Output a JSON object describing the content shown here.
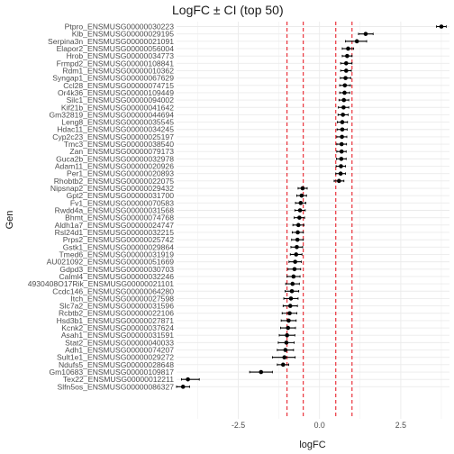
{
  "chart_data": {
    "type": "scatter",
    "title": "LogFC ± CI (top 50)",
    "xlabel": "logFC",
    "ylabel": "Gen",
    "xlim": [
      -4.4,
      4.0
    ],
    "x_ticks": [
      -2.5,
      0.0,
      2.5
    ],
    "x_tick_labels": [
      "-2.5",
      "0.0",
      "2.5"
    ],
    "grid": true,
    "error_bars": true,
    "reference_lines": {
      "values": [
        -1,
        -0.5,
        0.5,
        1
      ],
      "style": "dashed",
      "color": "#e8202a"
    },
    "point_color": "#000000",
    "genes": [
      {
        "name": "Ptpro_ENSMUSG00000030223",
        "logFC": 3.75,
        "ci_low": 3.6,
        "ci_high": 3.9
      },
      {
        "name": "Klb_ENSMUSG00000029195",
        "logFC": 1.42,
        "ci_low": 1.2,
        "ci_high": 1.65
      },
      {
        "name": "Serpina3n_ENSMUSG00000021091",
        "logFC": 1.15,
        "ci_low": 0.8,
        "ci_high": 1.45
      },
      {
        "name": "Elapor2_ENSMUSG00000056004",
        "logFC": 0.88,
        "ci_low": 0.7,
        "ci_high": 1.05
      },
      {
        "name": "Hrob_ENSMUSG00000034773",
        "logFC": 0.85,
        "ci_low": 0.7,
        "ci_high": 1.0
      },
      {
        "name": "Frmpd2_ENSMUSG00000108841",
        "logFC": 0.82,
        "ci_low": 0.65,
        "ci_high": 1.0
      },
      {
        "name": "Rdm1_ENSMUSG00000010362",
        "logFC": 0.82,
        "ci_low": 0.65,
        "ci_high": 0.98
      },
      {
        "name": "Syngap1_ENSMUSG00000067629",
        "logFC": 0.8,
        "ci_low": 0.64,
        "ci_high": 0.96
      },
      {
        "name": "Ccl28_ENSMUSG00000074715",
        "logFC": 0.78,
        "ci_low": 0.62,
        "ci_high": 0.95
      },
      {
        "name": "Or4k36_ENSMUSG00000109449",
        "logFC": 0.77,
        "ci_low": 0.62,
        "ci_high": 0.93
      },
      {
        "name": "Silc1_ENSMUSG00000094002",
        "logFC": 0.75,
        "ci_low": 0.6,
        "ci_high": 0.9
      },
      {
        "name": "Kif21b_ENSMUSG00000041642",
        "logFC": 0.74,
        "ci_low": 0.58,
        "ci_high": 0.9
      },
      {
        "name": "Gm32819_ENSMUSG00000044694",
        "logFC": 0.72,
        "ci_low": 0.57,
        "ci_high": 0.88
      },
      {
        "name": "Leng8_ENSMUSG00000035545",
        "logFC": 0.7,
        "ci_low": 0.55,
        "ci_high": 0.86
      },
      {
        "name": "Hdac11_ENSMUSG00000034245",
        "logFC": 0.7,
        "ci_low": 0.54,
        "ci_high": 0.85
      },
      {
        "name": "Cyp2c23_ENSMUSG00000025197",
        "logFC": 0.69,
        "ci_low": 0.53,
        "ci_high": 0.84
      },
      {
        "name": "Tmc3_ENSMUSG00000038540",
        "logFC": 0.68,
        "ci_low": 0.53,
        "ci_high": 0.83
      },
      {
        "name": "Zan_ENSMUSG00000079173",
        "logFC": 0.68,
        "ci_low": 0.53,
        "ci_high": 0.82
      },
      {
        "name": "Guca2b_ENSMUSG00000032978",
        "logFC": 0.67,
        "ci_low": 0.52,
        "ci_high": 0.82
      },
      {
        "name": "Adam11_ENSMUSG00000020926",
        "logFC": 0.66,
        "ci_low": 0.51,
        "ci_high": 0.8
      },
      {
        "name": "Per1_ENSMUSG00000020893",
        "logFC": 0.65,
        "ci_low": 0.5,
        "ci_high": 0.8
      },
      {
        "name": "Rhobtb2_ENSMUSG00000022075",
        "logFC": 0.6,
        "ci_low": 0.45,
        "ci_high": 0.75
      },
      {
        "name": "Nipsnap2_ENSMUSG00000029432",
        "logFC": -0.52,
        "ci_low": -0.66,
        "ci_high": -0.38
      },
      {
        "name": "Gpt2_ENSMUSG00000031700",
        "logFC": -0.55,
        "ci_low": -0.7,
        "ci_high": -0.4
      },
      {
        "name": "Fv1_ENSMUSG00000070583",
        "logFC": -0.58,
        "ci_low": -0.74,
        "ci_high": -0.42
      },
      {
        "name": "Rwdd4a_ENSMUSG00000031568",
        "logFC": -0.6,
        "ci_low": -0.76,
        "ci_high": -0.44
      },
      {
        "name": "Bhmt_ENSMUSG00000074768",
        "logFC": -0.62,
        "ci_low": -0.78,
        "ci_high": -0.46
      },
      {
        "name": "Aldh1a7_ENSMUSG00000024747",
        "logFC": -0.65,
        "ci_low": -0.82,
        "ci_high": -0.48
      },
      {
        "name": "Rsl24d1_ENSMUSG00000032215",
        "logFC": -0.67,
        "ci_low": -0.84,
        "ci_high": -0.5
      },
      {
        "name": "Prps2_ENSMUSG00000025742",
        "logFC": -0.68,
        "ci_low": -0.86,
        "ci_high": -0.5
      },
      {
        "name": "Gstk1_ENSMUSG00000029864",
        "logFC": -0.7,
        "ci_low": -0.88,
        "ci_high": -0.52
      },
      {
        "name": "Tmed6_ENSMUSG00000031919",
        "logFC": -0.72,
        "ci_low": -0.9,
        "ci_high": -0.54
      },
      {
        "name": "AU021092_ENSMUSG00000051669",
        "logFC": -0.75,
        "ci_low": -0.94,
        "ci_high": -0.56
      },
      {
        "name": "Gdpd3_ENSMUSG00000030703",
        "logFC": -0.77,
        "ci_low": -0.97,
        "ci_high": -0.58
      },
      {
        "name": "Calml4_ENSMUSG00000032246",
        "logFC": -0.8,
        "ci_low": -1.0,
        "ci_high": -0.6
      },
      {
        "name": "4930408O17Rik_ENSMUSG00000021101",
        "logFC": -0.83,
        "ci_low": -1.04,
        "ci_high": -0.62
      },
      {
        "name": "Ccdc146_ENSMUSG00000064280",
        "logFC": -0.85,
        "ci_low": -1.06,
        "ci_high": -0.64
      },
      {
        "name": "Itch_ENSMUSG00000027598",
        "logFC": -0.88,
        "ci_low": -1.1,
        "ci_high": -0.66
      },
      {
        "name": "Slc7a2_ENSMUSG00000031596",
        "logFC": -0.9,
        "ci_low": -1.12,
        "ci_high": -0.68
      },
      {
        "name": "Rcbtb2_ENSMUSG00000022106",
        "logFC": -0.92,
        "ci_low": -1.15,
        "ci_high": -0.7
      },
      {
        "name": "Hsd3b1_ENSMUSG00000027871",
        "logFC": -0.95,
        "ci_low": -1.18,
        "ci_high": -0.72
      },
      {
        "name": "Kcnk2_ENSMUSG00000037624",
        "logFC": -0.97,
        "ci_low": -1.2,
        "ci_high": -0.74
      },
      {
        "name": "Asah1_ENSMUSG00000031591",
        "logFC": -1.0,
        "ci_low": -1.24,
        "ci_high": -0.76
      },
      {
        "name": "Stat2_ENSMUSG00000040033",
        "logFC": -1.02,
        "ci_low": -1.27,
        "ci_high": -0.78
      },
      {
        "name": "Adh1_ENSMUSG00000074207",
        "logFC": -1.05,
        "ci_low": -1.3,
        "ci_high": -0.8
      },
      {
        "name": "Sult1e1_ENSMUSG00000029272",
        "logFC": -1.08,
        "ci_low": -1.45,
        "ci_high": -0.75
      },
      {
        "name": "Ndufs5_ENSMUSG00000028648",
        "logFC": -1.12,
        "ci_low": -1.3,
        "ci_high": -0.95
      },
      {
        "name": "Gm10683_ENSMUSG00000109817",
        "logFC": -1.8,
        "ci_low": -2.15,
        "ci_high": -1.45
      },
      {
        "name": "Tex22_ENSMUSG00000012211",
        "logFC": -4.05,
        "ci_low": -4.25,
        "ci_high": -3.7
      },
      {
        "name": "Slfn5os_ENSMUSG00000086327",
        "logFC": -4.2,
        "ci_low": -4.4,
        "ci_high": -4.0
      }
    ]
  }
}
